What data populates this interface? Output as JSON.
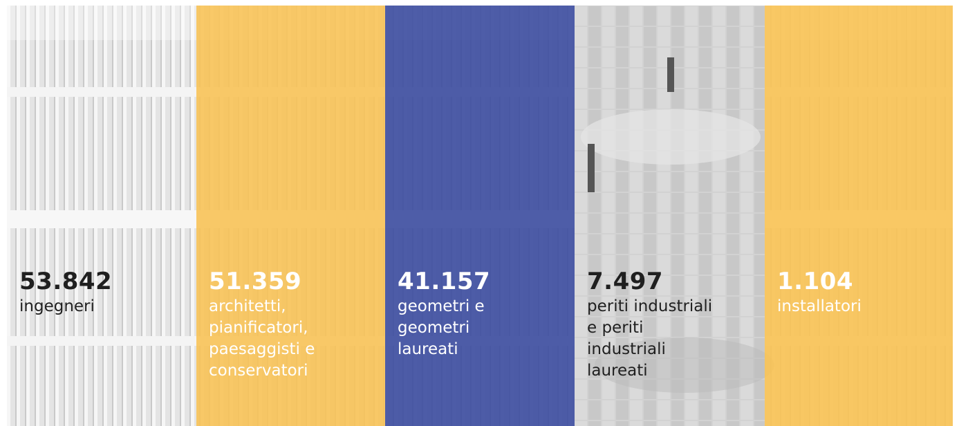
{
  "panels": [
    {
      "number": "53.842",
      "label": "ingegneri"
    },
    {
      "number": "51.359",
      "label": "architetti, pianificatori, paesaggisti e conservatori"
    },
    {
      "number": "41.157",
      "label": "geometri e geometri laureati"
    },
    {
      "number": "7.497",
      "label": "periti industriali e periti industriali laureati"
    },
    {
      "number": "1.104",
      "label": "installatori"
    }
  ]
}
